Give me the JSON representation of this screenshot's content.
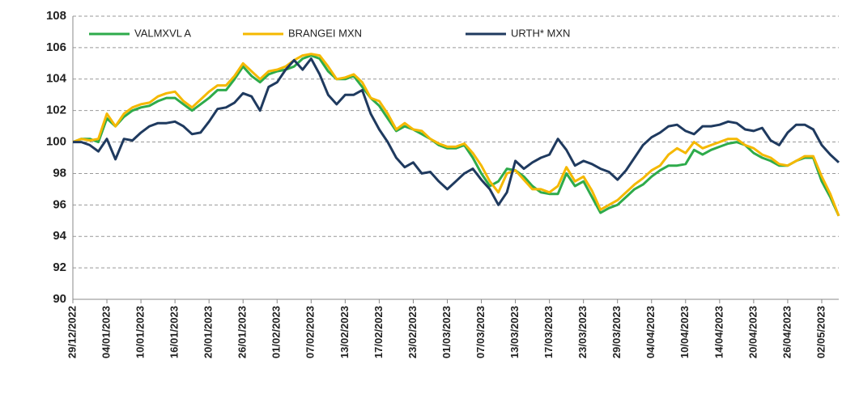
{
  "chart_data": {
    "type": "line",
    "categories": [
      "29/12/2022",
      null,
      null,
      null,
      "04/01/2023",
      null,
      null,
      null,
      "10/01/2023",
      null,
      null,
      null,
      "16/01/2023",
      null,
      null,
      null,
      "20/01/2023",
      null,
      null,
      null,
      "26/01/2023",
      null,
      null,
      null,
      "01/02/2023",
      null,
      null,
      null,
      "07/02/2023",
      null,
      null,
      null,
      "13/02/2023",
      null,
      null,
      null,
      "17/02/2023",
      null,
      null,
      null,
      "23/02/2023",
      null,
      null,
      null,
      "01/03/2023",
      null,
      null,
      null,
      "07/03/2023",
      null,
      null,
      null,
      "13/03/2023",
      null,
      null,
      null,
      "17/03/2023",
      null,
      null,
      null,
      "23/03/2023",
      null,
      null,
      null,
      "29/03/2023",
      null,
      null,
      null,
      "04/04/2023",
      null,
      null,
      null,
      "10/04/2023",
      null,
      null,
      null,
      "14/04/2023",
      null,
      null,
      null,
      "20/04/2023",
      null,
      null,
      null,
      "26/04/2023",
      null,
      null,
      null,
      "02/05/2023",
      null,
      null
    ],
    "series": [
      {
        "name": "VALMXVL A",
        "color": "#2eab4b",
        "values": [
          100,
          100.2,
          100.2,
          100,
          101.5,
          101,
          101.6,
          102,
          102.2,
          102.3,
          102.6,
          102.8,
          102.8,
          102.4,
          102,
          102.4,
          102.8,
          103.3,
          103.3,
          104,
          104.8,
          104.2,
          103.8,
          104.3,
          104.5,
          104.6,
          104.8,
          105.3,
          105.5,
          105.3,
          104.5,
          104,
          104,
          104.2,
          103.5,
          102.8,
          102.3,
          101.5,
          100.7,
          101,
          100.8,
          100.5,
          100.2,
          99.8,
          99.6,
          99.6,
          99.8,
          99,
          98,
          97.2,
          97.5,
          98.3,
          98.2,
          97.8,
          97.2,
          96.8,
          96.7,
          96.7,
          98,
          97.2,
          97.5,
          96.5,
          95.5,
          95.8,
          96,
          96.5,
          97,
          97.3,
          97.8,
          98.2,
          98.5,
          98.5,
          98.6,
          99.5,
          99.2,
          99.5,
          99.7,
          99.9,
          100,
          99.8,
          99.3,
          99,
          98.8,
          98.5,
          98.5,
          98.8,
          99,
          99,
          97.5,
          96.5,
          95.3
        ]
      },
      {
        "name": "BRANGEI MXN",
        "color": "#f5b800",
        "values": [
          100,
          100.2,
          100.1,
          100.2,
          101.8,
          101,
          101.8,
          102.2,
          102.4,
          102.5,
          102.9,
          103.1,
          103.2,
          102.6,
          102.2,
          102.7,
          103.2,
          103.6,
          103.6,
          104.2,
          105,
          104.5,
          104,
          104.5,
          104.6,
          104.8,
          105.2,
          105.5,
          105.6,
          105.5,
          104.8,
          104,
          104.1,
          104.3,
          103.8,
          102.8,
          102.6,
          101.8,
          100.8,
          101.2,
          100.8,
          100.7,
          100.2,
          99.9,
          99.7,
          99.7,
          99.9,
          99.3,
          98.5,
          97.5,
          96.8,
          98,
          98.2,
          97.6,
          97,
          97,
          96.8,
          97.2,
          98.4,
          97.5,
          97.8,
          96.9,
          95.7,
          96,
          96.3,
          96.8,
          97.3,
          97.7,
          98.2,
          98.5,
          99.2,
          99.6,
          99.3,
          100,
          99.6,
          99.8,
          100,
          100.2,
          100.2,
          99.8,
          99.6,
          99.2,
          99,
          98.6,
          98.5,
          98.8,
          99.1,
          99.1,
          97.8,
          96.7,
          95.3
        ]
      },
      {
        "name": "URTH* MXN",
        "color": "#1f3a5f",
        "values": [
          100,
          100,
          99.8,
          99.4,
          100.2,
          98.9,
          100.2,
          100.1,
          100.6,
          101,
          101.2,
          101.2,
          101.3,
          101,
          100.5,
          100.6,
          101.3,
          102.1,
          102.2,
          102.5,
          103.1,
          102.9,
          102,
          103.5,
          103.8,
          104.6,
          105.2,
          104.6,
          105.3,
          104.3,
          103,
          102.4,
          103,
          103,
          103.3,
          101.8,
          100.8,
          100,
          99,
          98.4,
          98.7,
          98,
          98.1,
          97.5,
          97,
          97.5,
          98,
          98.3,
          97.6,
          97,
          96,
          96.8,
          98.8,
          98.3,
          98.7,
          99,
          99.2,
          100.2,
          99.5,
          98.5,
          98.8,
          98.6,
          98.3,
          98.1,
          97.6,
          98.2,
          99,
          99.8,
          100.3,
          100.6,
          101,
          101.1,
          100.7,
          100.5,
          101,
          101,
          101.1,
          101.3,
          101.2,
          100.8,
          100.7,
          100.9,
          100.1,
          99.8,
          100.6,
          101.1,
          101.1,
          100.8,
          99.8,
          99.2,
          98.7
        ]
      }
    ],
    "ylim": [
      90,
      108
    ],
    "yticks": [
      90,
      92,
      94,
      96,
      98,
      100,
      102,
      104,
      106,
      108
    ],
    "grid": true,
    "legend": "top"
  }
}
